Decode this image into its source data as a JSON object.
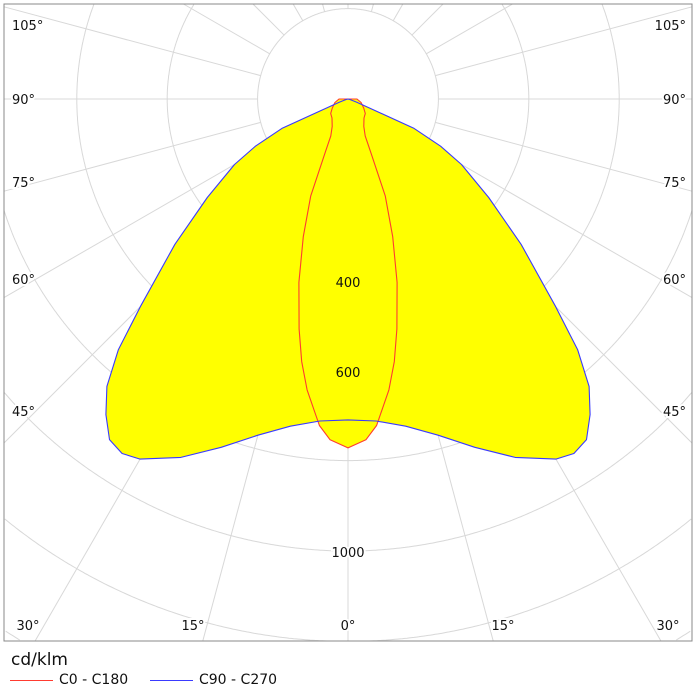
{
  "chart_data": {
    "type": "polar",
    "unit_label": "cd/klm",
    "radial_grid_values": [
      200,
      400,
      600,
      800,
      1000,
      1200,
      1400,
      1600
    ],
    "radial_tick_labels": [
      "400",
      "600",
      "1000"
    ],
    "angle_step_deg": 15,
    "angle_labels": {
      "left": [
        "105°",
        "90°",
        "75°",
        "60°",
        "45°"
      ],
      "bottom": [
        "30°",
        "15°",
        "0°",
        "15°",
        "30°"
      ],
      "right": [
        "105°",
        "90°",
        "75°",
        "60°",
        "45°"
      ]
    },
    "grid": true,
    "legend_position": "bottom-left",
    "fill_color": "#ffff00",
    "series": [
      {
        "name": "C0 - C180",
        "color": "#ff3b30",
        "angles_deg": [
          0,
          3,
          5,
          8,
          10,
          12,
          15,
          18,
          21,
          23,
          25,
          30,
          40,
          50,
          60,
          75,
          90
        ],
        "values": [
          772,
          755,
          725,
          650,
          590,
          520,
          420,
          320,
          230,
          130,
          90,
          70,
          55,
          50,
          40,
          30,
          20
        ]
      },
      {
        "name": "C90 - C270",
        "color": "#3a3aff",
        "angles_deg": [
          0,
          5,
          10,
          15,
          20,
          25,
          30,
          32.5,
          35,
          37.5,
          40,
          42.5,
          45,
          50,
          55,
          60,
          63,
          66,
          67,
          70,
          75,
          90
        ],
        "values": [
          710,
          715,
          735,
          770,
          820,
          875,
          920,
          930,
          920,
          880,
          830,
          752,
          650,
          500,
          380,
          290,
          230,
          160,
          60,
          20,
          5,
          0
        ]
      }
    ]
  }
}
